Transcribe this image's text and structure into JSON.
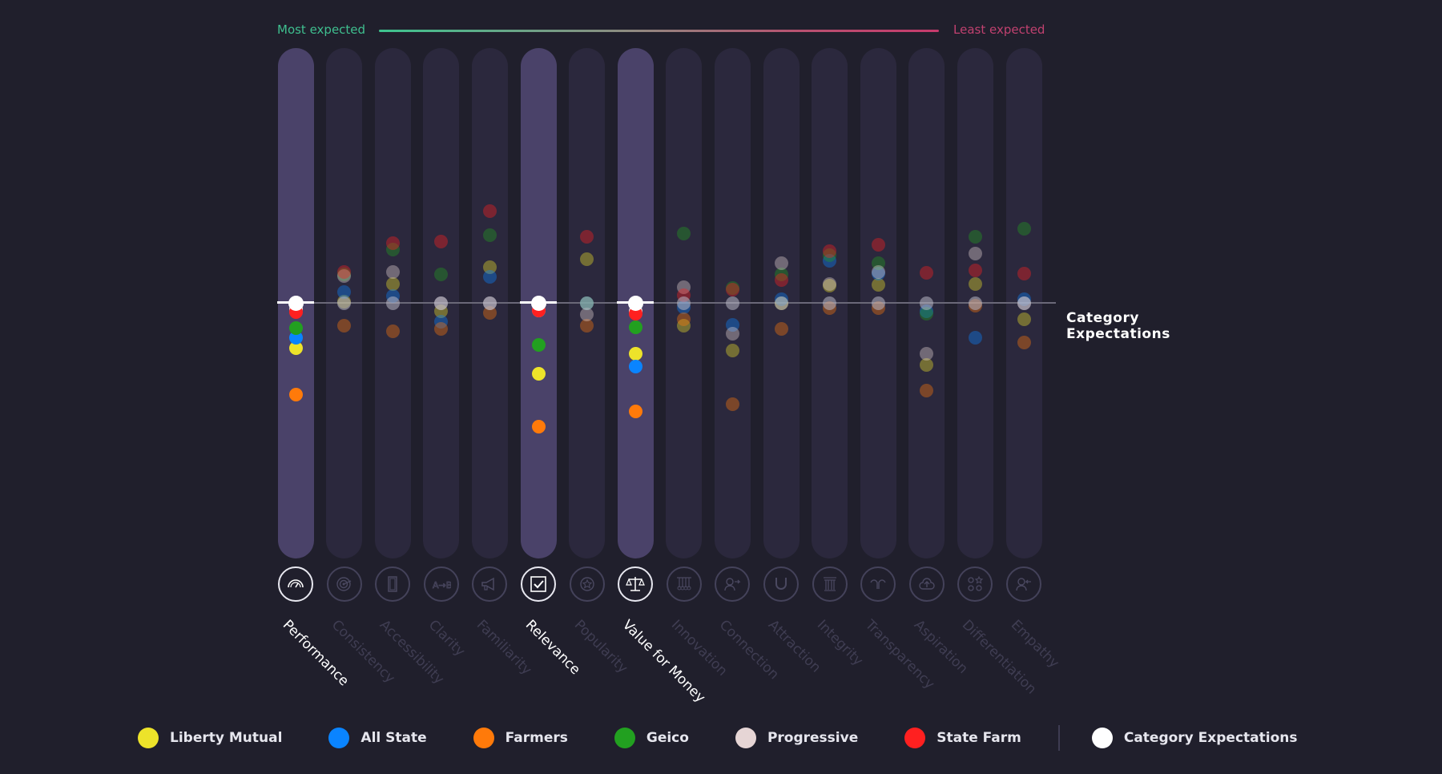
{
  "chart_data": {
    "type": "scatter",
    "title": "",
    "scale": {
      "left_label": "Most expected",
      "right_label": "Least expected"
    },
    "reference_label": "Category Expectations",
    "value_note": "Relative position vs. category expectation line (0); positive = above line (more expected), units approximate",
    "categories": [
      "Performance",
      "Consistency",
      "Accessibility",
      "Clarity",
      "Familiarity",
      "Relevance",
      "Popularity",
      "Value for Money",
      "Innovation",
      "Connection",
      "Attraction",
      "Integrity",
      "Transparency",
      "Aspiration",
      "Differentiation",
      "Empathy"
    ],
    "highlighted": [
      "Performance",
      "Relevance",
      "Value for Money"
    ],
    "icons": [
      "speedometer-icon",
      "target-icon",
      "door-icon",
      "a-to-b-icon",
      "megaphone-icon",
      "checkbox-icon",
      "star-badge-icon",
      "scales-icon",
      "newtons-cradle-icon",
      "person-arrow-out-icon",
      "magnet-icon",
      "pillar-icon",
      "open-hands-icon",
      "cloud-upload-icon",
      "shapes-icon",
      "person-arrow-in-icon"
    ],
    "series": [
      {
        "name": "Liberty Mutual",
        "color": "#ede32a",
        "values": [
          -5.6,
          0.2,
          2.4,
          -1.0,
          4.5,
          -8.8,
          5.5,
          -6.3,
          -2.8,
          -5.9,
          0.0,
          2.2,
          2.3,
          -7.7,
          2.4,
          -2.0
        ]
      },
      {
        "name": "All State",
        "color": "#0a84ff",
        "values": [
          -4.3,
          1.4,
          0.9,
          -2.3,
          3.3,
          0.0,
          0.0,
          -7.9,
          -0.5,
          -2.7,
          0.5,
          5.3,
          3.7,
          -1.0,
          -4.3,
          0.5
        ]
      },
      {
        "name": "Farmers",
        "color": "#ff7a0a",
        "values": [
          -11.4,
          -2.8,
          -3.5,
          -3.2,
          -1.2,
          -15.4,
          -2.8,
          -13.5,
          -2.0,
          -12.6,
          -3.2,
          -0.6,
          -0.6,
          -10.9,
          -0.3,
          -4.9
        ]
      },
      {
        "name": "Geico",
        "color": "#22a020",
        "values": [
          -3.1,
          3.6,
          6.7,
          3.6,
          8.5,
          -5.2,
          0.0,
          -3.0,
          8.7,
          1.9,
          3.6,
          6.0,
          5.0,
          -1.3,
          8.3,
          9.3
        ]
      },
      {
        "name": "Progressive",
        "color": "#e6d5d5",
        "values": [
          -0.7,
          3.4,
          3.9,
          0.0,
          0.0,
          -0.9,
          -1.4,
          -1.0,
          2.0,
          -3.8,
          5.0,
          2.4,
          3.9,
          -6.3,
          6.2,
          0.0
        ]
      },
      {
        "name": "State Farm",
        "color": "#ff2020",
        "values": [
          -1.1,
          3.9,
          7.5,
          7.7,
          11.5,
          -0.9,
          8.3,
          -1.3,
          1.0,
          1.7,
          2.9,
          6.5,
          7.3,
          3.8,
          4.1,
          3.7
        ]
      },
      {
        "name": "Category Expectations",
        "color": "#ffffff",
        "values": [
          0,
          0,
          0,
          0,
          0,
          0,
          0,
          0,
          0,
          0,
          0,
          0,
          0,
          0,
          0,
          0
        ]
      }
    ]
  },
  "legend": [
    {
      "label": "Liberty Mutual",
      "color": "#ede32a"
    },
    {
      "label": "All State",
      "color": "#0a84ff"
    },
    {
      "label": "Farmers",
      "color": "#ff7a0a"
    },
    {
      "label": "Geico",
      "color": "#22a020"
    },
    {
      "label": "Progressive",
      "color": "#e6d5d5"
    },
    {
      "label": "State Farm",
      "color": "#ff2020"
    },
    {
      "label": "Category Expectations",
      "color": "#ffffff"
    }
  ]
}
